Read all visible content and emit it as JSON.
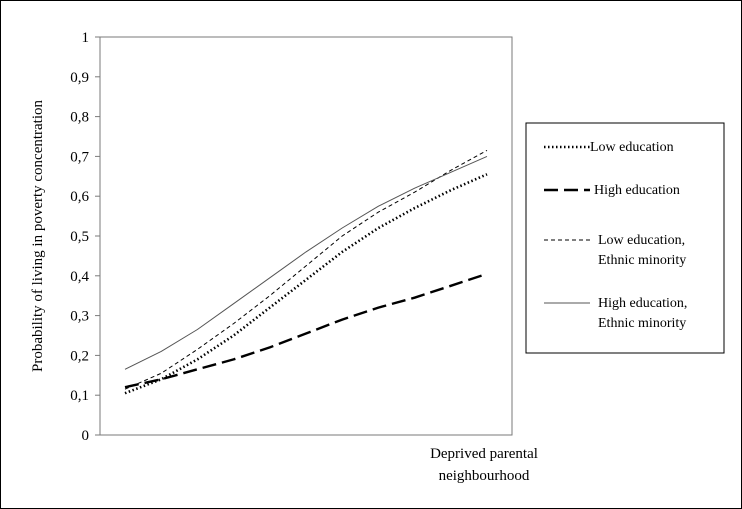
{
  "chart_data": {
    "type": "line",
    "ylabel": "Probability  of living  in poverty concentration",
    "xlabel_lines": [
      "Deprived parental",
      "neighbourhood"
    ],
    "ylim": [
      0,
      1
    ],
    "y_ticks": [
      "0",
      "0,1",
      "0,2",
      "0,3",
      "0,4",
      "0,5",
      "0,6",
      "0,7",
      "0,8",
      "0,9",
      "1"
    ],
    "y_tick_values": [
      0,
      0.1,
      0.2,
      0.3,
      0.4,
      0.5,
      0.6,
      0.7,
      0.8,
      0.9,
      1.0
    ],
    "x": [
      0,
      0.1,
      0.2,
      0.3,
      0.4,
      0.5,
      0.6,
      0.7,
      0.8,
      0.9,
      1.0
    ],
    "legend_position": "right",
    "series": [
      {
        "name": "Low education",
        "style": "dotted",
        "color": "#000000",
        "values": [
          0.105,
          0.14,
          0.19,
          0.25,
          0.32,
          0.39,
          0.46,
          0.52,
          0.57,
          0.615,
          0.655
        ]
      },
      {
        "name": "High education",
        "style": "long-dash",
        "color": "#000000",
        "values": [
          0.12,
          0.14,
          0.165,
          0.19,
          0.22,
          0.255,
          0.29,
          0.32,
          0.345,
          0.375,
          0.405
        ]
      },
      {
        "name_lines": [
          "Low education,",
          "Ethnic minority"
        ],
        "style": "short-dash",
        "color": "#000000",
        "values": [
          0.115,
          0.155,
          0.215,
          0.28,
          0.35,
          0.425,
          0.5,
          0.56,
          0.61,
          0.665,
          0.715
        ]
      },
      {
        "name_lines": [
          "High education,",
          "Ethnic minority"
        ],
        "style": "solid",
        "color": "#555555",
        "values": [
          0.165,
          0.21,
          0.265,
          0.33,
          0.395,
          0.46,
          0.52,
          0.575,
          0.62,
          0.66,
          0.7
        ]
      }
    ]
  }
}
